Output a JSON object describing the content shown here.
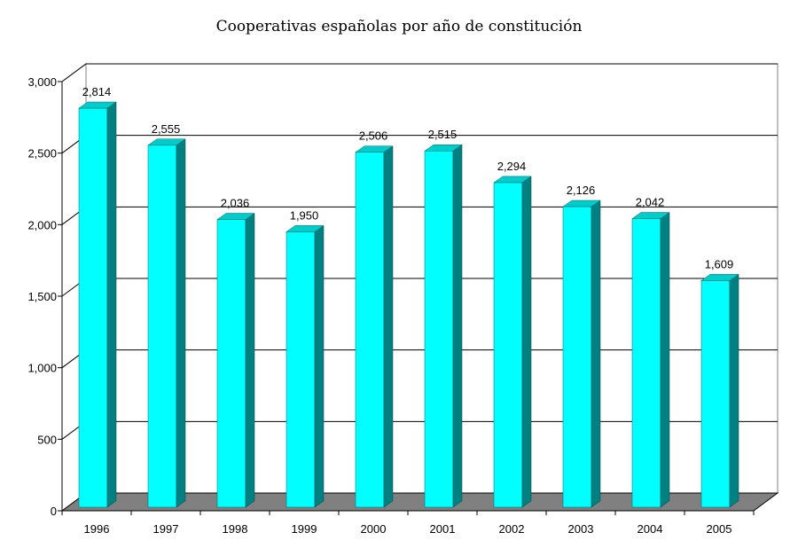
{
  "chart_data": {
    "type": "bar",
    "title": "Cooperativas españolas por año de constitución",
    "xlabel": "",
    "ylabel": "",
    "categories": [
      "1996",
      "1997",
      "1998",
      "1999",
      "2000",
      "2001",
      "2002",
      "2003",
      "2004",
      "2005"
    ],
    "values": [
      2814,
      2555,
      2036,
      1950,
      2506,
      2515,
      2294,
      2126,
      2042,
      1609
    ],
    "data_labels": [
      "2,814",
      "2,555",
      "2,036",
      "1,950",
      "2,506",
      "2,515",
      "2,294",
      "2,126",
      "2,042",
      "1,609"
    ],
    "ylim": [
      0,
      3000
    ],
    "yticks": [
      0,
      500,
      1000,
      1500,
      2000,
      2500,
      3000
    ],
    "ytick_labels": [
      "0",
      "500",
      "1,000",
      "1,500",
      "2,000",
      "2,500",
      "3,000"
    ],
    "grid": true,
    "legend": "none",
    "colors": {
      "bar_front": "#00FFFF",
      "bar_side": "#008080",
      "bar_top": "#00CCCC",
      "floor": "#808080",
      "grid": "#000000"
    }
  }
}
